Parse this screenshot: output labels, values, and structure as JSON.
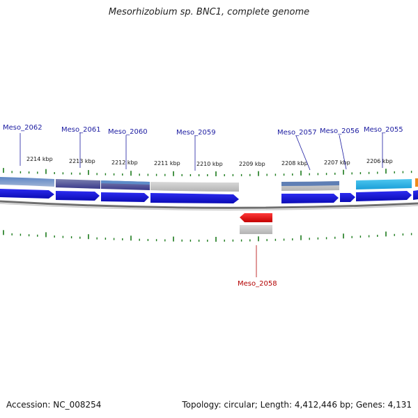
{
  "title": "Mesorhizobium sp. BNC1, complete genome",
  "footer": {
    "accession": "Accession: NC_008254",
    "genome_info": "Topology: circular; Length: 4,412,446 bp; Genes: 4,131"
  },
  "scale": {
    "unit": "kbp",
    "labels": [
      "2214 kbp",
      "2213 kbp",
      "2212 kbp",
      "2211 kbp",
      "2210 kbp",
      "2209 kbp",
      "2208 kbp",
      "2207 kbp",
      "2206 kbp"
    ]
  },
  "genes": [
    {
      "label": "Meso_2062",
      "strand": "forward"
    },
    {
      "label": "Meso_2061",
      "strand": "forward"
    },
    {
      "label": "Meso_2060",
      "strand": "forward"
    },
    {
      "label": "Meso_2059",
      "strand": "forward"
    },
    {
      "label": "Meso_2057",
      "strand": "forward"
    },
    {
      "label": "Meso_2056",
      "strand": "forward"
    },
    {
      "label": "Meso_2055",
      "strand": "forward"
    },
    {
      "label": "Meso_2058",
      "strand": "reverse"
    }
  ],
  "colors": {
    "forward_gene": "#1a1ae6",
    "reverse_gene": "#ee1111",
    "forward_label": "#1a1aa0",
    "reverse_label": "#b30000",
    "tick": "#1a7a1a",
    "backbone": "#777777"
  }
}
